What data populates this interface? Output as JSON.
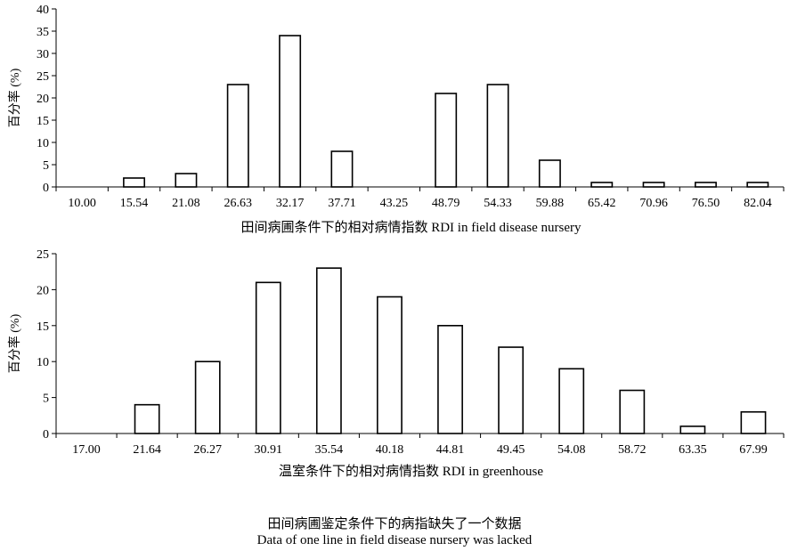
{
  "chart_data": [
    {
      "type": "bar",
      "xlabel": "田间病圃条件下的相对病情指数 RDI in field disease nursery",
      "ylabel": "百分率 (%)",
      "ylim": [
        0,
        40
      ],
      "yticks": [
        0,
        5,
        10,
        15,
        20,
        25,
        30,
        35,
        40
      ],
      "categories": [
        "10.00",
        "15.54",
        "21.08",
        "26.63",
        "32.17",
        "37.71",
        "43.25",
        "48.79",
        "54.33",
        "59.88",
        "65.42",
        "70.96",
        "76.50",
        "82.04"
      ],
      "values": [
        0,
        2,
        3,
        23,
        34,
        8,
        0,
        21,
        23,
        6,
        1,
        1,
        1,
        1
      ],
      "grid": false,
      "legend": "none"
    },
    {
      "type": "bar",
      "xlabel": "温室条件下的相对病情指数 RDI in greenhouse",
      "ylabel": "百分率 (%)",
      "ylim": [
        0,
        25
      ],
      "yticks": [
        0,
        5,
        10,
        15,
        20,
        25
      ],
      "categories": [
        "17.00",
        "21.64",
        "26.27",
        "30.91",
        "35.54",
        "40.18",
        "44.81",
        "49.45",
        "54.08",
        "58.72",
        "63.35",
        "67.99"
      ],
      "values": [
        0,
        4,
        10,
        21,
        23,
        19,
        15,
        12,
        9,
        6,
        1,
        3
      ],
      "grid": false,
      "legend": "none"
    }
  ],
  "notes": {
    "cn": "田间病圃鉴定条件下的病指缺失了一个数据",
    "en": "Data of one line in field disease nursery was lacked"
  }
}
